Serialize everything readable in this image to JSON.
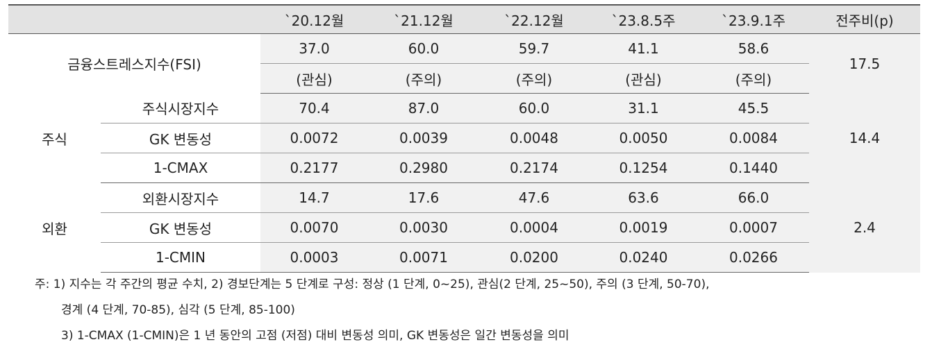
{
  "header": [
    "`20.12월",
    "`21.12월",
    "`22.12월",
    "`23.8.5주",
    "`23.9.1주",
    "전주비(p)"
  ],
  "fsi": {
    "label": "금융스트레스지수(FSI)",
    "values": [
      "37.0",
      "60.0",
      "59.7",
      "41.1",
      "58.6"
    ],
    "status": [
      "(관심)",
      "(주의)",
      "(주의)",
      "(관심)",
      "(주의)"
    ],
    "change": "17.5"
  },
  "sections": [
    {
      "group": "주식",
      "change": "14.4",
      "rows": [
        {
          "label": "주식시장지수",
          "values": [
            "70.4",
            "87.0",
            "60.0",
            "31.1",
            "45.5"
          ]
        },
        {
          "label": "GK 변동성",
          "values": [
            "0.0072",
            "0.0039",
            "0.0048",
            "0.0050",
            "0.0084"
          ]
        },
        {
          "label": "1-CMAX",
          "values": [
            "0.2177",
            "0.2980",
            "0.2174",
            "0.1254",
            "0.1440"
          ]
        }
      ]
    },
    {
      "group": "외환",
      "change": "2.4",
      "rows": [
        {
          "label": "외환시장지수",
          "values": [
            "14.7",
            "17.6",
            "47.6",
            "63.6",
            "66.0"
          ]
        },
        {
          "label": "GK 변동성",
          "values": [
            "0.0070",
            "0.0030",
            "0.0004",
            "0.0019",
            "0.0007"
          ]
        },
        {
          "label": "1-CMIN",
          "values": [
            "0.0003",
            "0.0071",
            "0.0200",
            "0.0240",
            "0.0266"
          ]
        }
      ]
    }
  ],
  "notes": [
    "주: 1) 지수는 각 주간의 평균 수치, 2) 경보단계는 5 단계로 구성: 정상 (1 단계, 0~25), 관심(2 단계, 25~50), 주의 (3 단계, 50-70),",
    "경계 (4 단계, 70-85), 심각 (5 단계, 85-100)",
    "3) 1-CMAX (1-CMIN)은 1 년 동안의 고점 (저점) 대비 변동성 의미, GK 변동성은 일간 변동성을 의미"
  ]
}
